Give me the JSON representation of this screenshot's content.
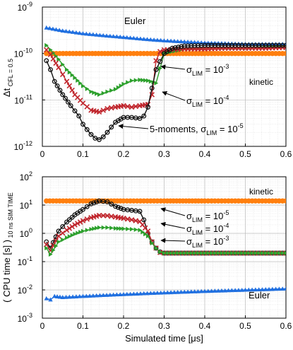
{
  "chart_data": [
    {
      "type": "line",
      "title": "",
      "xlabel": "",
      "ylabel_main": "Δt",
      "ylabel_sub": "CFL = 0.5",
      "yscale": "log",
      "xlim": [
        0,
        0.6
      ],
      "ylim_exp": [
        -12,
        -9
      ],
      "xticks": [
        "0",
        "0.1",
        "0.2",
        "0.3",
        "0.4",
        "0.5",
        "0.6"
      ],
      "yticks": [
        {
          "base": "10",
          "exp": "-12"
        },
        {
          "base": "10",
          "exp": "-11"
        },
        {
          "base": "10",
          "exp": "-10"
        },
        {
          "base": "10",
          "exp": "-9"
        }
      ],
      "grid": true,
      "series": [
        {
          "key": "euler",
          "color": "#1f6fe0",
          "marker": "triangle-up",
          "x": [
            0.01,
            0.05,
            0.1,
            0.15,
            0.2,
            0.25,
            0.3,
            0.35,
            0.4,
            0.45,
            0.5,
            0.55,
            0.6
          ],
          "y": [
            3.6e-10,
            3.1e-10,
            2.7e-10,
            2.45e-10,
            2.25e-10,
            2.05e-10,
            1.9e-10,
            1.8e-10,
            1.7e-10,
            1.65e-10,
            1.6e-10,
            1.6e-10,
            1.6e-10
          ]
        },
        {
          "key": "kinetic",
          "color": "#ff7f0e",
          "marker": "circle",
          "x": [
            0.01,
            0.1,
            0.2,
            0.3,
            0.4,
            0.5,
            0.6
          ],
          "y": [
            1e-10,
            1e-10,
            1e-10,
            1e-10,
            1e-10,
            1e-10,
            1e-10
          ]
        },
        {
          "key": "s3",
          "color": "#2ca02c",
          "marker": "triangle-right",
          "x": [
            0.01,
            0.02,
            0.04,
            0.06,
            0.08,
            0.1,
            0.12,
            0.14,
            0.16,
            0.18,
            0.2,
            0.22,
            0.24,
            0.26,
            0.28,
            0.3,
            0.35,
            0.4,
            0.45,
            0.5,
            0.55,
            0.6
          ],
          "y": [
            1.5e-10,
            1.2e-10,
            7.5e-11,
            4.5e-11,
            3e-11,
            2e-11,
            1.5e-11,
            1.3e-11,
            1.5e-11,
            1.7e-11,
            2.2e-11,
            2.6e-11,
            2.7e-11,
            2.6e-11,
            2.3e-11,
            1e-10,
            1.25e-10,
            1.3e-10,
            1.3e-10,
            1.3e-10,
            1.35e-10,
            1.4e-10
          ]
        },
        {
          "key": "s4",
          "color": "#c0262d",
          "marker": "x",
          "x": [
            0.01,
            0.02,
            0.04,
            0.06,
            0.08,
            0.1,
            0.12,
            0.14,
            0.16,
            0.18,
            0.2,
            0.22,
            0.24,
            0.26,
            0.27,
            0.28,
            0.29,
            0.3,
            0.35,
            0.4,
            0.45,
            0.5,
            0.55,
            0.6
          ],
          "y": [
            1.2e-10,
            9.5e-11,
            5e-11,
            2.5e-11,
            1.3e-11,
            8.5e-12,
            6e-12,
            5.5e-12,
            6.5e-12,
            7e-12,
            7.5e-12,
            7e-12,
            7.5e-12,
            8e-12,
            1.3e-11,
            7e-11,
            1.1e-10,
            1.2e-10,
            1.25e-10,
            1.25e-10,
            1.3e-10,
            1.3e-10,
            1.3e-10,
            1.35e-10
          ]
        },
        {
          "key": "s5",
          "color": "#111111",
          "marker": "circle-open",
          "x": [
            0.01,
            0.02,
            0.03,
            0.05,
            0.07,
            0.09,
            0.1,
            0.11,
            0.12,
            0.13,
            0.14,
            0.15,
            0.16,
            0.17,
            0.18,
            0.2,
            0.22,
            0.24,
            0.25,
            0.26,
            0.27,
            0.28,
            0.3,
            0.32,
            0.35,
            0.4,
            0.45,
            0.5,
            0.55,
            0.6
          ],
          "y": [
            7e-11,
            4.5e-11,
            2.5e-11,
            1.3e-11,
            7.5e-12,
            4.5e-12,
            3e-12,
            2.3e-12,
            1.8e-12,
            1.5e-12,
            1.4e-12,
            1.6e-12,
            2e-12,
            2.6e-12,
            3.3e-12,
            4.2e-12,
            4.2e-12,
            4e-12,
            4.5e-12,
            7e-12,
            1.8e-11,
            4.5e-11,
            1e-10,
            1.3e-10,
            1.45e-10,
            1.5e-10,
            1.5e-10,
            1.5e-10,
            1.5e-10,
            1.5e-10
          ]
        }
      ],
      "annotations": [
        {
          "key": "euler",
          "text": "Euler"
        },
        {
          "key": "kinetic",
          "text": "kinetic"
        },
        {
          "key": "s3",
          "prefix": "",
          "base": "σ",
          "sub": "LIM",
          "mid": " = 10",
          "sup": "-3"
        },
        {
          "key": "s4",
          "prefix": "",
          "base": "σ",
          "sub": "LIM",
          "mid": " = 10",
          "sup": "-4"
        },
        {
          "key": "s5",
          "prefix": "5-moments, ",
          "base": "σ",
          "sub": "LIM",
          "mid": " = 10",
          "sup": "-5"
        }
      ]
    },
    {
      "type": "line",
      "title": "",
      "xlabel": "Simulated time [μs]",
      "ylabel_main": "( CPU time [s] )",
      "ylabel_sub": "10 ns SIM TIME",
      "yscale": "log",
      "xlim": [
        0,
        0.6
      ],
      "ylim_exp": [
        -3,
        2
      ],
      "xticks": [
        "0",
        "0.1",
        "0.2",
        "0.3",
        "0.4",
        "0.5",
        "0.6"
      ],
      "yticks": [
        {
          "base": "10",
          "exp": "-3"
        },
        {
          "base": "10",
          "exp": "-2"
        },
        {
          "base": "10",
          "exp": "-1"
        },
        {
          "base": "10",
          "exp": "0"
        },
        {
          "base": "10",
          "exp": "1"
        },
        {
          "base": "10",
          "exp": "2"
        }
      ],
      "grid": true,
      "series": [
        {
          "key": "kinetic",
          "color": "#ff7f0e",
          "marker": "circle",
          "x": [
            0.01,
            0.1,
            0.2,
            0.3,
            0.4,
            0.5,
            0.6
          ],
          "y": [
            14,
            14,
            14,
            14,
            14,
            14,
            14
          ]
        },
        {
          "key": "s5",
          "color": "#111111",
          "marker": "circle-open",
          "x": [
            0.01,
            0.02,
            0.04,
            0.06,
            0.08,
            0.1,
            0.12,
            0.14,
            0.16,
            0.18,
            0.2,
            0.22,
            0.24,
            0.25,
            0.26,
            0.27,
            0.28,
            0.29,
            0.3,
            0.35,
            0.4,
            0.45,
            0.5,
            0.55,
            0.6
          ],
          "y": [
            0.5,
            0.3,
            1.2,
            2.5,
            4.5,
            7,
            11,
            14,
            13,
            9,
            7,
            6.5,
            6,
            3,
            1,
            0.5,
            0.3,
            0.22,
            0.2,
            0.2,
            0.2,
            0.2,
            0.2,
            0.2,
            0.2
          ]
        },
        {
          "key": "s4",
          "color": "#c0262d",
          "marker": "x",
          "x": [
            0.01,
            0.02,
            0.04,
            0.06,
            0.08,
            0.1,
            0.12,
            0.14,
            0.16,
            0.18,
            0.2,
            0.22,
            0.24,
            0.26,
            0.27,
            0.28,
            0.29,
            0.3,
            0.35,
            0.4,
            0.45,
            0.5,
            0.55,
            0.6
          ],
          "y": [
            0.4,
            0.25,
            0.8,
            1.3,
            2,
            2.8,
            3.6,
            4.3,
            4.2,
            3.8,
            3.4,
            3,
            2.6,
            1.2,
            0.5,
            0.3,
            0.21,
            0.2,
            0.2,
            0.2,
            0.2,
            0.2,
            0.2,
            0.2
          ]
        },
        {
          "key": "s3",
          "color": "#2ca02c",
          "marker": "triangle-right",
          "x": [
            0.01,
            0.02,
            0.04,
            0.06,
            0.08,
            0.1,
            0.12,
            0.14,
            0.16,
            0.18,
            0.2,
            0.22,
            0.24,
            0.26,
            0.27,
            0.28,
            0.29,
            0.3,
            0.35,
            0.4,
            0.45,
            0.5,
            0.55,
            0.6
          ],
          "y": [
            0.3,
            0.18,
            0.5,
            0.7,
            0.95,
            1.2,
            1.4,
            1.6,
            1.6,
            1.5,
            1.45,
            1.4,
            1.3,
            0.8,
            0.45,
            0.3,
            0.22,
            0.2,
            0.2,
            0.2,
            0.2,
            0.2,
            0.2,
            0.2
          ]
        },
        {
          "key": "euler",
          "color": "#1f6fe0",
          "marker": "triangle-up",
          "x": [
            0.01,
            0.02,
            0.03,
            0.05,
            0.1,
            0.15,
            0.2,
            0.25,
            0.3,
            0.35,
            0.4,
            0.45,
            0.5,
            0.55,
            0.6
          ],
          "y": [
            0.005,
            0.0045,
            0.006,
            0.0055,
            0.006,
            0.0065,
            0.007,
            0.0075,
            0.008,
            0.0085,
            0.009,
            0.0095,
            0.01,
            0.0105,
            0.011
          ]
        }
      ],
      "annotations": [
        {
          "key": "kinetic",
          "text": "kinetic"
        },
        {
          "key": "s5",
          "prefix": "",
          "base": "σ",
          "sub": "LIM",
          "mid": " = 10",
          "sup": "-5"
        },
        {
          "key": "s4",
          "prefix": "",
          "base": "σ",
          "sub": "LIM",
          "mid": " = 10",
          "sup": "-4"
        },
        {
          "key": "s3",
          "prefix": "",
          "base": "σ",
          "sub": "LIM",
          "mid": " = 10",
          "sup": "-3"
        },
        {
          "key": "euler",
          "text": "Euler"
        }
      ]
    }
  ]
}
